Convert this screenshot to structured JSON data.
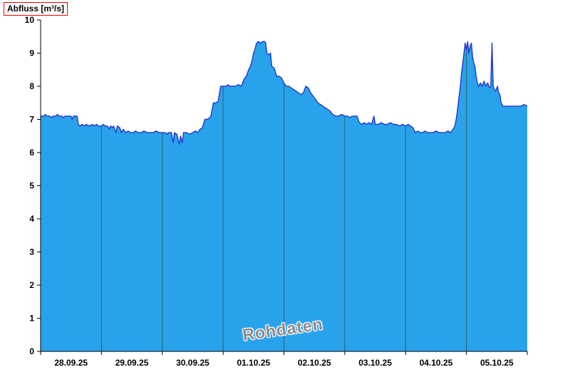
{
  "chart_data": {
    "type": "area",
    "title": "Abfluss [m³/s]",
    "ylabel": "Abfluss [m³/s]",
    "watermark": "Rohdaten",
    "ylim": [
      0,
      10
    ],
    "y_ticks": [
      0,
      1,
      2,
      3,
      4,
      5,
      6,
      7,
      8,
      9,
      10
    ],
    "x_tick_labels": [
      "28.09.25",
      "29.09.25",
      "30.09.25",
      "01.10.25",
      "02.10.25",
      "03.10.25",
      "04.10.25",
      "05.10.25"
    ],
    "x_range_days": [
      0,
      8
    ],
    "grid": "vertical-day-separators",
    "legend": "none",
    "colors": {
      "fill": "#29a2ec",
      "line": "#2138cc",
      "separator": "#356b7a",
      "axis": "#000000",
      "watermark": "#8c8c8c",
      "title_box_border": "#ff0000"
    },
    "series": [
      {
        "name": "Abfluss Rohdaten",
        "unit": "m³/s",
        "points": [
          [
            0,
            7.1
          ],
          [
            0.05,
            7.1
          ],
          [
            0.08,
            7.15
          ],
          [
            0.1,
            7.1
          ],
          [
            0.15,
            7.1
          ],
          [
            0.18,
            7.05
          ],
          [
            0.2,
            7.1
          ],
          [
            0.25,
            7.1
          ],
          [
            0.28,
            7.15
          ],
          [
            0.3,
            7.1
          ],
          [
            0.35,
            7.1
          ],
          [
            0.38,
            7.05
          ],
          [
            0.4,
            7.1
          ],
          [
            0.45,
            7.1
          ],
          [
            0.5,
            7.1
          ],
          [
            0.52,
            7.0
          ],
          [
            0.54,
            7.1
          ],
          [
            0.58,
            7.1
          ],
          [
            0.6,
            7.1
          ],
          [
            0.62,
            6.85
          ],
          [
            0.65,
            6.8
          ],
          [
            0.68,
            6.85
          ],
          [
            0.72,
            6.8
          ],
          [
            0.75,
            6.85
          ],
          [
            0.8,
            6.8
          ],
          [
            0.85,
            6.85
          ],
          [
            0.88,
            6.8
          ],
          [
            0.92,
            6.85
          ],
          [
            0.95,
            6.8
          ],
          [
            1.0,
            6.8
          ],
          [
            1.03,
            6.85
          ],
          [
            1.06,
            6.8
          ],
          [
            1.1,
            6.8
          ],
          [
            1.13,
            6.7
          ],
          [
            1.15,
            6.8
          ],
          [
            1.18,
            6.75
          ],
          [
            1.2,
            6.8
          ],
          [
            1.24,
            6.6
          ],
          [
            1.26,
            6.8
          ],
          [
            1.3,
            6.75
          ],
          [
            1.33,
            6.6
          ],
          [
            1.36,
            6.7
          ],
          [
            1.4,
            6.6
          ],
          [
            1.44,
            6.65
          ],
          [
            1.48,
            6.6
          ],
          [
            1.52,
            6.6
          ],
          [
            1.56,
            6.65
          ],
          [
            1.6,
            6.6
          ],
          [
            1.65,
            6.6
          ],
          [
            1.7,
            6.65
          ],
          [
            1.75,
            6.6
          ],
          [
            1.8,
            6.6
          ],
          [
            1.85,
            6.6
          ],
          [
            1.9,
            6.65
          ],
          [
            1.95,
            6.6
          ],
          [
            2.0,
            6.6
          ],
          [
            2.05,
            6.6
          ],
          [
            2.08,
            6.55
          ],
          [
            2.1,
            6.6
          ],
          [
            2.15,
            6.6
          ],
          [
            2.18,
            6.3
          ],
          [
            2.2,
            6.6
          ],
          [
            2.24,
            6.55
          ],
          [
            2.28,
            6.25
          ],
          [
            2.3,
            6.5
          ],
          [
            2.33,
            6.3
          ],
          [
            2.35,
            6.6
          ],
          [
            2.4,
            6.6
          ],
          [
            2.45,
            6.55
          ],
          [
            2.5,
            6.6
          ],
          [
            2.55,
            6.65
          ],
          [
            2.58,
            6.6
          ],
          [
            2.62,
            6.7
          ],
          [
            2.66,
            6.75
          ],
          [
            2.7,
            7.0
          ],
          [
            2.74,
            7.0
          ],
          [
            2.78,
            7.05
          ],
          [
            2.8,
            7.1
          ],
          [
            2.84,
            7.5
          ],
          [
            2.88,
            7.5
          ],
          [
            2.92,
            7.55
          ],
          [
            2.96,
            8.0
          ],
          [
            3.0,
            8.0
          ],
          [
            3.05,
            8.0
          ],
          [
            3.08,
            8.05
          ],
          [
            3.1,
            8.0
          ],
          [
            3.15,
            8.0
          ],
          [
            3.2,
            8.0
          ],
          [
            3.25,
            8.05
          ],
          [
            3.3,
            8.0
          ],
          [
            3.34,
            8.2
          ],
          [
            3.38,
            8.3
          ],
          [
            3.42,
            8.5
          ],
          [
            3.45,
            8.6
          ],
          [
            3.48,
            8.8
          ],
          [
            3.5,
            9.0
          ],
          [
            3.52,
            9.1
          ],
          [
            3.55,
            9.3
          ],
          [
            3.58,
            9.35
          ],
          [
            3.62,
            9.3
          ],
          [
            3.65,
            9.35
          ],
          [
            3.68,
            9.35
          ],
          [
            3.7,
            9.3
          ],
          [
            3.72,
            9.0
          ],
          [
            3.75,
            8.95
          ],
          [
            3.78,
            9.0
          ],
          [
            3.8,
            8.6
          ],
          [
            3.84,
            8.55
          ],
          [
            3.88,
            8.3
          ],
          [
            3.92,
            8.3
          ],
          [
            3.96,
            8.25
          ],
          [
            4.0,
            8.1
          ],
          [
            4.04,
            8.0
          ],
          [
            4.08,
            8.0
          ],
          [
            4.12,
            7.95
          ],
          [
            4.16,
            7.9
          ],
          [
            4.2,
            7.85
          ],
          [
            4.24,
            7.8
          ],
          [
            4.28,
            7.75
          ],
          [
            4.32,
            7.8
          ],
          [
            4.36,
            8.0
          ],
          [
            4.4,
            7.95
          ],
          [
            4.44,
            7.8
          ],
          [
            4.48,
            7.7
          ],
          [
            4.52,
            7.6
          ],
          [
            4.56,
            7.5
          ],
          [
            4.6,
            7.45
          ],
          [
            4.64,
            7.4
          ],
          [
            4.68,
            7.35
          ],
          [
            4.72,
            7.3
          ],
          [
            4.76,
            7.25
          ],
          [
            4.8,
            7.15
          ],
          [
            4.85,
            7.1
          ],
          [
            4.9,
            7.1
          ],
          [
            4.95,
            7.15
          ],
          [
            5.0,
            7.1
          ],
          [
            5.05,
            7.1
          ],
          [
            5.08,
            7.05
          ],
          [
            5.12,
            7.1
          ],
          [
            5.16,
            7.1
          ],
          [
            5.2,
            7.1
          ],
          [
            5.24,
            6.9
          ],
          [
            5.28,
            6.85
          ],
          [
            5.32,
            6.9
          ],
          [
            5.36,
            6.85
          ],
          [
            5.4,
            6.9
          ],
          [
            5.44,
            6.85
          ],
          [
            5.48,
            7.1
          ],
          [
            5.5,
            6.85
          ],
          [
            5.55,
            6.85
          ],
          [
            5.6,
            6.9
          ],
          [
            5.65,
            6.85
          ],
          [
            5.7,
            6.85
          ],
          [
            5.75,
            6.9
          ],
          [
            5.8,
            6.85
          ],
          [
            5.85,
            6.85
          ],
          [
            5.9,
            6.8
          ],
          [
            5.95,
            6.85
          ],
          [
            6.0,
            6.8
          ],
          [
            6.04,
            6.85
          ],
          [
            6.08,
            6.8
          ],
          [
            6.12,
            6.75
          ],
          [
            6.16,
            6.6
          ],
          [
            6.2,
            6.65
          ],
          [
            6.24,
            6.6
          ],
          [
            6.28,
            6.6
          ],
          [
            6.32,
            6.65
          ],
          [
            6.36,
            6.6
          ],
          [
            6.4,
            6.6
          ],
          [
            6.45,
            6.6
          ],
          [
            6.5,
            6.65
          ],
          [
            6.55,
            6.6
          ],
          [
            6.6,
            6.6
          ],
          [
            6.65,
            6.6
          ],
          [
            6.7,
            6.65
          ],
          [
            6.74,
            6.6
          ],
          [
            6.78,
            6.7
          ],
          [
            6.81,
            6.8
          ],
          [
            6.84,
            7.1
          ],
          [
            6.86,
            7.4
          ],
          [
            6.88,
            7.7
          ],
          [
            6.9,
            8.0
          ],
          [
            6.92,
            8.4
          ],
          [
            6.94,
            8.7
          ],
          [
            6.96,
            9.0
          ],
          [
            6.98,
            9.3
          ],
          [
            7.0,
            9.1
          ],
          [
            7.02,
            9.35
          ],
          [
            7.04,
            9.0
          ],
          [
            7.06,
            9.2
          ],
          [
            7.08,
            9.3
          ],
          [
            7.1,
            8.9
          ],
          [
            7.12,
            8.7
          ],
          [
            7.14,
            8.6
          ],
          [
            7.16,
            8.3
          ],
          [
            7.18,
            8.1
          ],
          [
            7.2,
            8.0
          ],
          [
            7.23,
            8.1
          ],
          [
            7.26,
            8.0
          ],
          [
            7.29,
            8.15
          ],
          [
            7.32,
            8.0
          ],
          [
            7.35,
            8.1
          ],
          [
            7.38,
            7.95
          ],
          [
            7.4,
            8.0
          ],
          [
            7.42,
            9.3
          ],
          [
            7.44,
            8.0
          ],
          [
            7.46,
            7.9
          ],
          [
            7.48,
            7.85
          ],
          [
            7.51,
            8.0
          ],
          [
            7.53,
            7.8
          ],
          [
            7.55,
            7.75
          ],
          [
            7.57,
            7.5
          ],
          [
            7.6,
            7.4
          ],
          [
            7.65,
            7.4
          ],
          [
            7.7,
            7.4
          ],
          [
            7.75,
            7.4
          ],
          [
            7.8,
            7.4
          ],
          [
            7.85,
            7.4
          ],
          [
            7.9,
            7.4
          ],
          [
            7.95,
            7.45
          ],
          [
            8.0,
            7.4
          ]
        ]
      }
    ]
  }
}
